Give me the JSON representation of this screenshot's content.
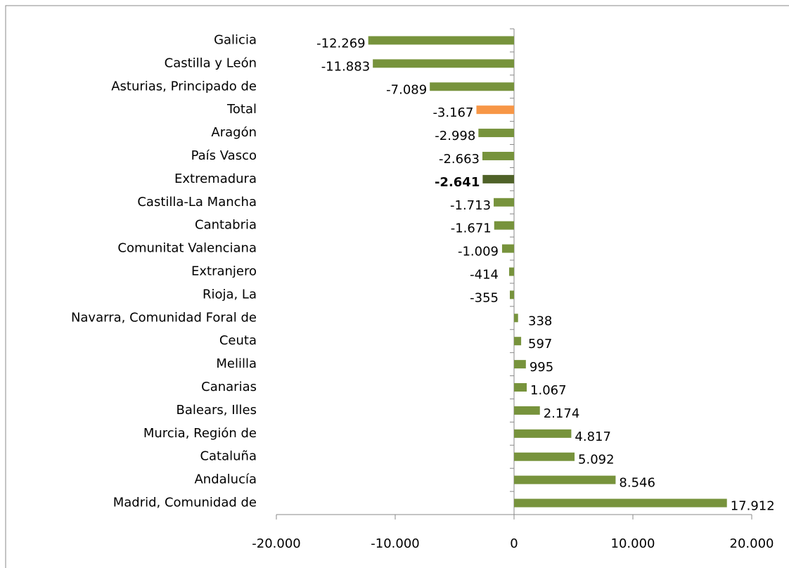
{
  "chart_data": {
    "type": "bar",
    "orientation": "horizontal",
    "categories": [
      "Galicia",
      "Castilla y León",
      "Asturias, Principado de",
      "Total",
      "Aragón",
      "País Vasco",
      "Extremadura",
      "Castilla-La Mancha",
      "Cantabria",
      "Comunitat Valenciana",
      "Extranjero",
      "Rioja, La",
      "Navarra, Comunidad  Foral de",
      "Ceuta",
      "Melilla",
      "Canarias",
      "Balears, Illes",
      "Murcia, Región de",
      "Cataluña",
      "Andalucía",
      "Madrid, Comunidad de"
    ],
    "values": [
      -12269,
      -11883,
      -7089,
      -3167,
      -2998,
      -2663,
      -2641,
      -1713,
      -1671,
      -1009,
      -414,
      -355,
      338,
      597,
      995,
      1067,
      2174,
      4817,
      5092,
      8546,
      17912
    ],
    "value_labels": [
      "-12.269",
      "-11.883",
      "-7.089",
      "-3.167",
      "-2.998",
      "-2.663",
      "-2.641",
      "-1.713",
      "-1.671",
      "-1.009",
      "-414",
      "-355",
      "338",
      "597",
      "995",
      "1.067",
      "2.174",
      "4.817",
      "5.092",
      "8.546",
      "17.912"
    ],
    "colors": [
      "#77933c",
      "#77933c",
      "#77933c",
      "#f79646",
      "#77933c",
      "#77933c",
      "#4f6228",
      "#77933c",
      "#77933c",
      "#77933c",
      "#77933c",
      "#77933c",
      "#77933c",
      "#77933c",
      "#77933c",
      "#77933c",
      "#77933c",
      "#77933c",
      "#77933c",
      "#77933c",
      "#77933c"
    ],
    "bold_label_index": 6,
    "xlim": [
      -20000,
      20000
    ],
    "xticks": [
      {
        "value": -20000,
        "label": "-20.000"
      },
      {
        "value": -10000,
        "label": "-10.000"
      },
      0,
      {
        "value": 10000,
        "label": "10.000"
      },
      {
        "value": 20000,
        "label": "20.000"
      }
    ]
  }
}
